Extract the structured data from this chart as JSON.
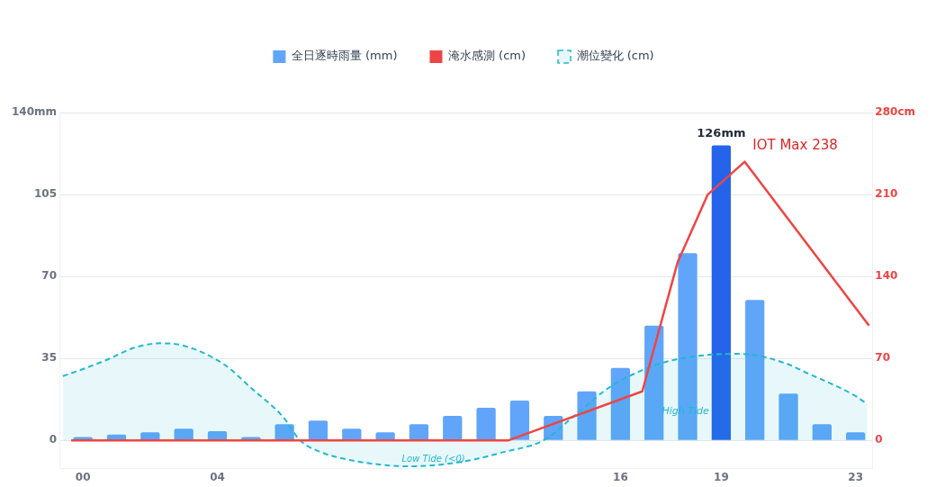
{
  "chart_data": {
    "type": "bar",
    "x": [
      0,
      1,
      2,
      3,
      4,
      5,
      6,
      7,
      8,
      9,
      10,
      11,
      12,
      13,
      14,
      15,
      16,
      17,
      18,
      19,
      20,
      21,
      22,
      23
    ],
    "xlim": [
      -0.7,
      23.5
    ],
    "xticks": [
      {
        "value": 0,
        "label": "00"
      },
      {
        "value": 4,
        "label": "04"
      },
      {
        "value": 16,
        "label": "16"
      },
      {
        "value": 19,
        "label": "19"
      },
      {
        "value": 23,
        "label": "23"
      }
    ],
    "ylim": [
      -12,
      140
    ],
    "yticks": [
      {
        "value": 0,
        "label": "0"
      },
      {
        "value": 35,
        "label": "35"
      },
      {
        "value": 70,
        "label": "70"
      },
      {
        "value": 105,
        "label": "105"
      },
      {
        "value": 140,
        "label": "140mm"
      }
    ],
    "y2lim": [
      -24,
      280
    ],
    "y2ticks": [
      {
        "value": 0,
        "label": "0"
      },
      {
        "value": 70,
        "label": "70"
      },
      {
        "value": 140,
        "label": "140"
      },
      {
        "value": 210,
        "label": "210"
      },
      {
        "value": 280,
        "label": "280cm"
      }
    ],
    "grid": "y",
    "legend": "top",
    "series": [
      {
        "name": "全日逐時雨量 (mm)",
        "color": "#60a5fa",
        "colors": [
          "#60a5fa",
          "#60a5fa",
          "#60a5fa",
          "#60a5fa",
          "#60a5fa",
          "#60a5fa",
          "#60a5fa",
          "#60a5fa",
          "#60a5fa",
          "#60a5fa",
          "#60a5fa",
          "#60a5fa",
          "#60a5fa",
          "#60a5fa",
          "#60a5fa",
          "#60a5fa",
          "#60a5fa",
          "#60a5fa",
          "#60a5fa",
          "#2563eb",
          "#60a5fa",
          "#60a5fa",
          "#60a5fa",
          "#60a5fa"
        ],
        "values": [
          1.5,
          2.5,
          3.5,
          5,
          4,
          1.5,
          7,
          8.5,
          5,
          3.5,
          7,
          10.5,
          14,
          17,
          10.5,
          21,
          31,
          49,
          80,
          126,
          60,
          20,
          7,
          3.5
        ],
        "value_labels": [
          null,
          null,
          null,
          null,
          null,
          null,
          null,
          null,
          null,
          null,
          null,
          null,
          null,
          null,
          null,
          null,
          null,
          null,
          null,
          "126mm",
          null,
          null,
          null,
          null
        ]
      },
      {
        "name": "淹水感測 (cm)",
        "type": "line",
        "axis": "y2",
        "color": "#ef4444",
        "marker": "none",
        "line_style": "solid",
        "x": [
          -0.35,
          12.65,
          16.65,
          17.7,
          18.6,
          19.7,
          23.4
        ],
        "values": [
          0,
          0,
          42,
          152,
          210,
          238,
          98
        ]
      },
      {
        "name": "潮位變化 (cm)",
        "type": "area",
        "axis": "y2",
        "color": "#22b8cf",
        "marker": "none",
        "line_style": "dashed",
        "x": [
          -0.6,
          0,
          0.8,
          1.5,
          2.3,
          3,
          4.2,
          5,
          5.96,
          6.47,
          7,
          8,
          9,
          9.7,
          10.5,
          11.5,
          12.5,
          13.7,
          14.5,
          15,
          15.5,
          16,
          17,
          18,
          19.4,
          20,
          21,
          21.6,
          22,
          23,
          23.35
        ],
        "values": [
          55,
          61,
          70,
          79,
          83,
          81,
          65,
          45,
          20,
          0,
          -9,
          -17,
          -21,
          -22,
          -21,
          -17,
          -10,
          0,
          18,
          30,
          42,
          51,
          64,
          71,
          74,
          73,
          65,
          57,
          52,
          38,
          31
        ]
      }
    ],
    "annotations": [
      "IOT Max 238",
      "Low Tide (<0)",
      "High Tide"
    ]
  }
}
